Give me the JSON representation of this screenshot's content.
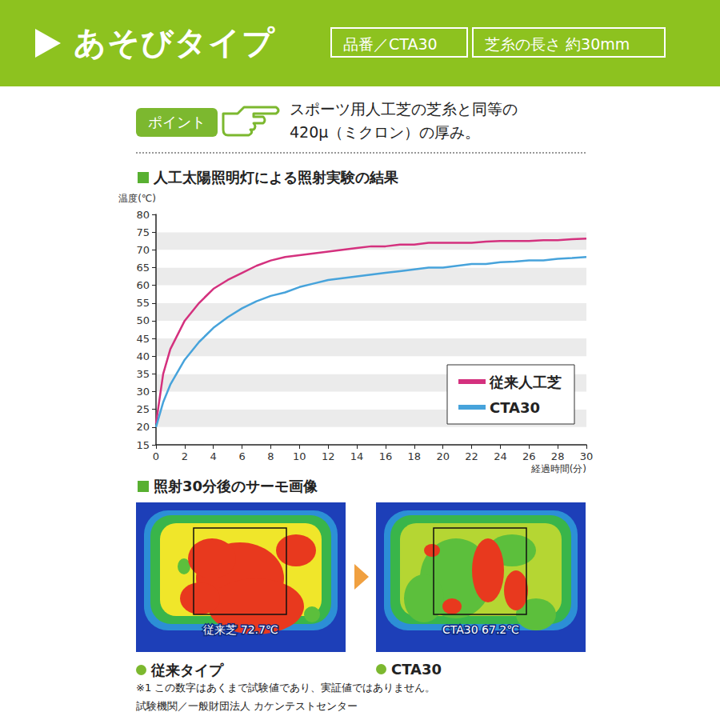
{
  "header": {
    "title": "あそびタイプ",
    "tags": [
      "品番／CTA30",
      "芝糸の長さ 約30mm"
    ]
  },
  "point": {
    "badge": "ポイント",
    "lines": [
      "スポーツ用人工芝の芝糸と同等の",
      "420μ（ミクロン）の厚み。"
    ]
  },
  "chart_section_title": "人工太陽照明灯による照射実験の結果",
  "chart_data": {
    "type": "line",
    "ylabel": "温度(℃)",
    "xlabel": "経過時間(分)",
    "x": [
      0,
      0.5,
      1,
      2,
      3,
      4,
      5,
      6,
      7,
      8,
      9,
      10,
      11,
      12,
      13,
      14,
      15,
      16,
      17,
      18,
      19,
      20,
      21,
      22,
      23,
      24,
      25,
      26,
      27,
      28,
      29,
      30
    ],
    "series": [
      {
        "name": "従来人工芝",
        "color": "#d4317e",
        "values": [
          21,
          35,
          42,
          50,
          55,
          59,
          61.5,
          63.5,
          65.5,
          67,
          68,
          68.5,
          69,
          69.5,
          70,
          70.5,
          71,
          71,
          71.5,
          71.5,
          72,
          72,
          72,
          72,
          72.3,
          72.5,
          72.5,
          72.5,
          72.7,
          72.7,
          73,
          73.2
        ]
      },
      {
        "name": "CTA30",
        "color": "#47a3db",
        "values": [
          20,
          27,
          32,
          39,
          44,
          48,
          51,
          53.5,
          55.5,
          57,
          58,
          59.5,
          60.5,
          61.5,
          62,
          62.5,
          63,
          63.5,
          64,
          64.5,
          65,
          65,
          65.5,
          66,
          66,
          66.5,
          66.7,
          67,
          67,
          67.5,
          67.7,
          68
        ]
      }
    ],
    "xlim": [
      0,
      30
    ],
    "xticks": [
      0,
      2,
      4,
      6,
      8,
      10,
      12,
      14,
      16,
      18,
      20,
      22,
      24,
      26,
      28,
      30
    ],
    "ylim": [
      15,
      80
    ],
    "yticks": [
      15,
      20,
      25,
      30,
      35,
      40,
      45,
      50,
      55,
      60,
      65,
      70,
      75,
      80
    ],
    "grid": true,
    "legend": "bottom-right"
  },
  "thermal": {
    "title": "照射30分後のサーモ画像",
    "images": [
      {
        "overlay": "従来芝 72.7℃",
        "caption": "従来タイプ"
      },
      {
        "overlay": "CTA30 67.2℃",
        "caption": "CTA30"
      }
    ]
  },
  "footnotes": [
    "※1 この数字はあくまで試験値であり、実証値ではありません。",
    "試験機関／一般財団法人 カケンテストセンター"
  ]
}
